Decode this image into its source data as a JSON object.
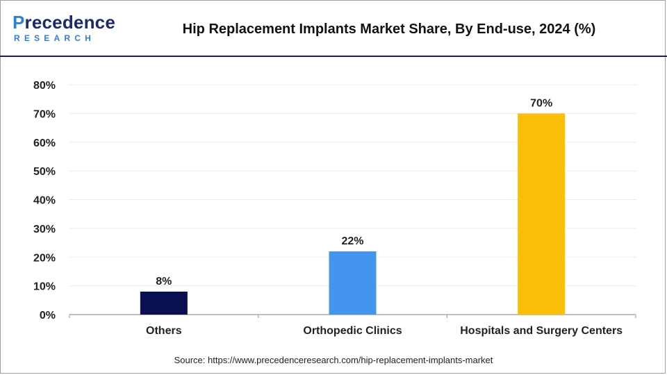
{
  "brand": {
    "logo_main": "recedence",
    "logo_initial": "P",
    "logo_sub": "RESEARCH",
    "colors": {
      "navy": "#1b2a6b",
      "blue": "#2f7fd6"
    }
  },
  "title": "Hip Replacement Implants Market Share, By End-use, 2024 (%)",
  "source": "Source: https://www.precedenceresearch.com/hip-replacement-implants-market",
  "chart_data": {
    "type": "bar",
    "title": "Hip Replacement Implants Market Share, By End-use, 2024 (%)",
    "categories": [
      "Others",
      "Orthopedic Clinics",
      "Hospitals and Surgery Centers"
    ],
    "values": [
      8,
      22,
      70
    ],
    "data_labels": [
      "8%",
      "22%",
      "70%"
    ],
    "colors": [
      "#0a0f4f",
      "#4495ee",
      "#fbbf07"
    ],
    "ylim": [
      0,
      80
    ],
    "y_ticks": [
      0,
      10,
      20,
      30,
      40,
      50,
      60,
      70,
      80
    ],
    "y_tick_labels": [
      "0%",
      "10%",
      "20%",
      "30%",
      "40%",
      "50%",
      "60%",
      "70%",
      "80%"
    ],
    "grid": true,
    "xlabel": "",
    "ylabel": ""
  }
}
